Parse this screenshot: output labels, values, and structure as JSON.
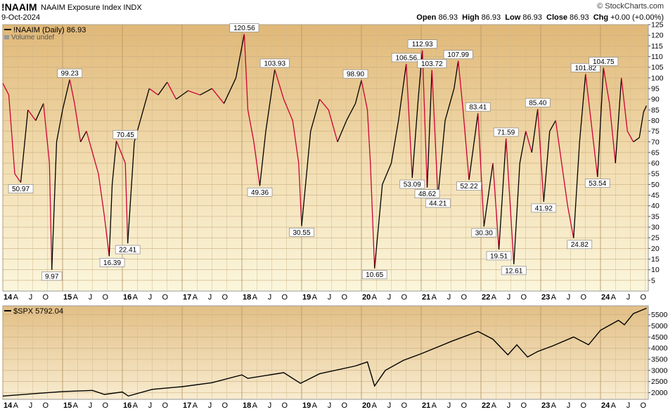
{
  "header": {
    "symbol": "!NAAIM",
    "name": "NAAIM Exposure Index  INDX",
    "date": "9-Oct-2024",
    "brand": "© StockCharts.com",
    "open_label": "Open",
    "open": "86.93",
    "high_label": "High",
    "high": "86.93",
    "low_label": "Low",
    "low": "86.93",
    "close_label": "Close",
    "close": "86.93",
    "chg_label": "Chg",
    "chg": "+0.00 (+0.00%)"
  },
  "chart_data": [
    {
      "type": "line",
      "legend": "!NAAIM (Daily) 86.93",
      "legend2": "Volume undef",
      "ylim": [
        0,
        125
      ],
      "yticks": [
        5,
        10,
        15,
        20,
        25,
        30,
        35,
        40,
        45,
        50,
        55,
        60,
        65,
        70,
        75,
        80,
        85,
        90,
        95,
        100,
        105,
        110,
        115,
        120,
        125
      ],
      "colors": {
        "up": "#000000",
        "down": "#cc0033",
        "label_bg": "#ffffff"
      },
      "xticks": [
        "14",
        "A",
        "J",
        "O",
        "15",
        "A",
        "J",
        "O",
        "16",
        "A",
        "J",
        "O",
        "17",
        "A",
        "J",
        "O",
        "18",
        "A",
        "J",
        "O",
        "19",
        "A",
        "J",
        "O",
        "20",
        "A",
        "J",
        "O",
        "21",
        "A",
        "J",
        "O",
        "22",
        "A",
        "J",
        "O",
        "23",
        "A",
        "J",
        "O",
        "24",
        "A",
        "J",
        "O"
      ],
      "xlim": [
        2014.0,
        2024.8
      ],
      "series": [
        {
          "x": [
            2014.0,
            2014.1,
            2014.2,
            2014.3,
            2014.42,
            2014.55,
            2014.68,
            2014.78,
            2014.82,
            2014.9,
            2015.0,
            2015.12,
            2015.2,
            2015.3,
            2015.4,
            2015.5,
            2015.6,
            2015.7,
            2015.78,
            2015.83,
            2015.9,
            2016.05,
            2016.09,
            2016.2,
            2016.3,
            2016.45,
            2016.6,
            2016.75,
            2016.9,
            2017.1,
            2017.3,
            2017.5,
            2017.7,
            2017.9,
            2018.04,
            2018.1,
            2018.2,
            2018.3,
            2018.4,
            2018.55,
            2018.7,
            2018.85,
            2018.95,
            2019.0,
            2019.15,
            2019.3,
            2019.45,
            2019.6,
            2019.75,
            2019.9,
            2020.0,
            2020.1,
            2020.15,
            2020.22,
            2020.35,
            2020.5,
            2020.62,
            2020.75,
            2020.85,
            2020.95,
            2021.02,
            2021.1,
            2021.18,
            2021.28,
            2021.4,
            2021.55,
            2021.62,
            2021.7,
            2021.8,
            2021.95,
            2022.05,
            2022.2,
            2022.3,
            2022.42,
            2022.55,
            2022.65,
            2022.75,
            2022.85,
            2022.95,
            2023.05,
            2023.15,
            2023.25,
            2023.35,
            2023.45,
            2023.55,
            2023.65,
            2023.75,
            2023.82,
            2023.95,
            2024.05,
            2024.15,
            2024.25,
            2024.35,
            2024.45,
            2024.55,
            2024.65,
            2024.72,
            2024.77
          ],
          "y": [
            97.5,
            92,
            55,
            50.97,
            85,
            80,
            88,
            60,
            9.97,
            70,
            85,
            99.23,
            88,
            70,
            75,
            65,
            55,
            35,
            16.39,
            50,
            70.45,
            60,
            22.41,
            70,
            80,
            95,
            92,
            98,
            90,
            94,
            92,
            95,
            88,
            100,
            120.56,
            85,
            70,
            49.36,
            75,
            103.93,
            90,
            80,
            60,
            30.55,
            75,
            90,
            85,
            70,
            80,
            88,
            98.9,
            85,
            60,
            10.65,
            50,
            60,
            80,
            106.56,
            53.09,
            90,
            112.93,
            48.62,
            103.72,
            44.21,
            80,
            95,
            107.99,
            85,
            52.22,
            83.41,
            30.3,
            60,
            19.51,
            71.59,
            12.61,
            60,
            75,
            65,
            85.4,
            41.92,
            75,
            80,
            60,
            40,
            24.82,
            70,
            101.82,
            85,
            53.54,
            104.75,
            88,
            60,
            100,
            75,
            70,
            72,
            84,
            86.93
          ],
          "labels": [
            {
              "x": 2014.3,
              "y": 50.97,
              "text": "50.97",
              "pos": "below"
            },
            {
              "x": 2014.82,
              "y": 9.97,
              "text": "9.97",
              "pos": "below"
            },
            {
              "x": 2015.12,
              "y": 99.23,
              "text": "99.23",
              "pos": "above"
            },
            {
              "x": 2015.83,
              "y": 16.39,
              "text": "16.39",
              "pos": "below"
            },
            {
              "x": 2016.05,
              "y": 70.45,
              "text": "70.45",
              "pos": "above"
            },
            {
              "x": 2016.09,
              "y": 22.41,
              "text": "22.41",
              "pos": "below"
            },
            {
              "x": 2018.04,
              "y": 120.56,
              "text": "120.56",
              "pos": "above"
            },
            {
              "x": 2018.3,
              "y": 49.36,
              "text": "49.36",
              "pos": "below"
            },
            {
              "x": 2018.55,
              "y": 103.93,
              "text": "103.93",
              "pos": "above"
            },
            {
              "x": 2019.0,
              "y": 30.55,
              "text": "30.55",
              "pos": "below"
            },
            {
              "x": 2019.9,
              "y": 98.9,
              "text": "98.90",
              "pos": "above"
            },
            {
              "x": 2020.22,
              "y": 10.65,
              "text": "10.65",
              "pos": "below"
            },
            {
              "x": 2020.75,
              "y": 106.56,
              "text": "106.56",
              "pos": "above"
            },
            {
              "x": 2020.85,
              "y": 53.09,
              "text": "53.09",
              "pos": "below"
            },
            {
              "x": 2021.02,
              "y": 112.93,
              "text": "112.93",
              "pos": "above"
            },
            {
              "x": 2021.1,
              "y": 48.62,
              "text": "48.62",
              "pos": "below"
            },
            {
              "x": 2021.18,
              "y": 103.72,
              "text": "103.72",
              "pos": "above"
            },
            {
              "x": 2021.28,
              "y": 44.21,
              "text": "44.21",
              "pos": "below"
            },
            {
              "x": 2021.62,
              "y": 107.99,
              "text": "107.99",
              "pos": "above"
            },
            {
              "x": 2021.8,
              "y": 52.22,
              "text": "52.22",
              "pos": "below"
            },
            {
              "x": 2021.95,
              "y": 83.41,
              "text": "83.41",
              "pos": "above"
            },
            {
              "x": 2022.05,
              "y": 30.3,
              "text": "30.30",
              "pos": "below"
            },
            {
              "x": 2022.3,
              "y": 19.51,
              "text": "19.51",
              "pos": "below"
            },
            {
              "x": 2022.42,
              "y": 71.59,
              "text": "71.59",
              "pos": "above"
            },
            {
              "x": 2022.55,
              "y": 12.61,
              "text": "12.61",
              "pos": "below"
            },
            {
              "x": 2022.95,
              "y": 85.4,
              "text": "85.40",
              "pos": "above"
            },
            {
              "x": 2023.05,
              "y": 41.92,
              "text": "41.92",
              "pos": "below"
            },
            {
              "x": 2023.65,
              "y": 24.82,
              "text": "24.82",
              "pos": "below"
            },
            {
              "x": 2023.75,
              "y": 101.82,
              "text": "101.82",
              "pos": "above"
            },
            {
              "x": 2023.95,
              "y": 53.54,
              "text": "53.54",
              "pos": "below"
            },
            {
              "x": 2024.05,
              "y": 104.75,
              "text": "104.75",
              "pos": "above"
            }
          ]
        }
      ]
    },
    {
      "type": "line",
      "legend": "$SPX 5792.04",
      "ylim": [
        1700,
        5900
      ],
      "yticks": [
        2000,
        2500,
        3000,
        3500,
        4000,
        4500,
        5000,
        5500
      ],
      "color": "#000000",
      "xticks": [
        "14",
        "A",
        "J",
        "O",
        "15",
        "A",
        "J",
        "O",
        "16",
        "A",
        "J",
        "O",
        "17",
        "A",
        "J",
        "O",
        "18",
        "A",
        "J",
        "O",
        "19",
        "A",
        "J",
        "O",
        "20",
        "A",
        "J",
        "O",
        "21",
        "A",
        "J",
        "O",
        "22",
        "A",
        "J",
        "O",
        "23",
        "A",
        "J",
        "O",
        "24",
        "A",
        "J",
        "O"
      ],
      "xlim": [
        2014.0,
        2024.8
      ],
      "series": [
        {
          "name": "$SPX",
          "x": [
            2014.0,
            2014.5,
            2015.0,
            2015.5,
            2015.7,
            2016.0,
            2016.1,
            2016.5,
            2017.0,
            2017.5,
            2018.0,
            2018.1,
            2018.7,
            2018.98,
            2019.3,
            2019.9,
            2020.1,
            2020.22,
            2020.4,
            2020.7,
            2021.0,
            2021.5,
            2021.95,
            2022.2,
            2022.45,
            2022.6,
            2022.78,
            2022.95,
            2023.2,
            2023.55,
            2023.8,
            2024.0,
            2024.3,
            2024.4,
            2024.55,
            2024.77
          ],
          "y": [
            1850,
            1950,
            2050,
            2100,
            1920,
            2030,
            1850,
            2150,
            2270,
            2450,
            2800,
            2640,
            2900,
            2420,
            2850,
            3200,
            3380,
            2300,
            3000,
            3450,
            3750,
            4300,
            4750,
            4400,
            3700,
            4150,
            3600,
            3850,
            4100,
            4500,
            4150,
            4800,
            5250,
            5050,
            5550,
            5792
          ]
        }
      ]
    }
  ]
}
